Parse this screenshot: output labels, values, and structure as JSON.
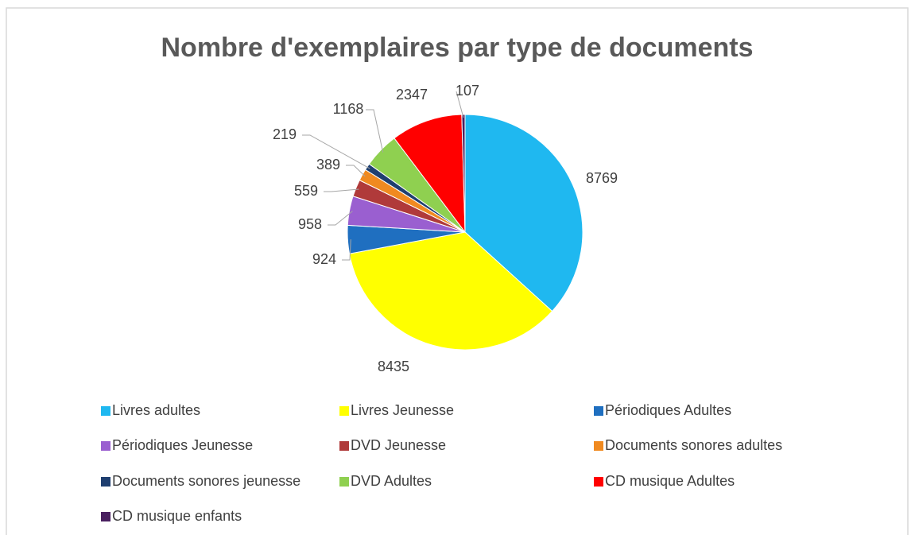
{
  "chart_data": {
    "type": "pie",
    "title": "Nombre d'exemplaires par type de documents",
    "categories": [
      "Livres adultes",
      "Livres Jeunesse",
      "Périodiques Adultes",
      "Périodiques Jeunesse",
      "DVD Jeunesse",
      "Documents sonores adultes",
      "Documents sonores jeunesse",
      "DVD Adultes",
      "CD musique Adultes",
      "CD musique enfants"
    ],
    "values": [
      8769,
      8435,
      924,
      958,
      559,
      389,
      219,
      1168,
      2347,
      107
    ],
    "colors": [
      "#1fb8f0",
      "#ffff00",
      "#1f6fc0",
      "#9a5fd0",
      "#b03a3a",
      "#f08a20",
      "#1f3f70",
      "#8fd050",
      "#ff0000",
      "#4a2060"
    ],
    "legend": "bottom"
  }
}
